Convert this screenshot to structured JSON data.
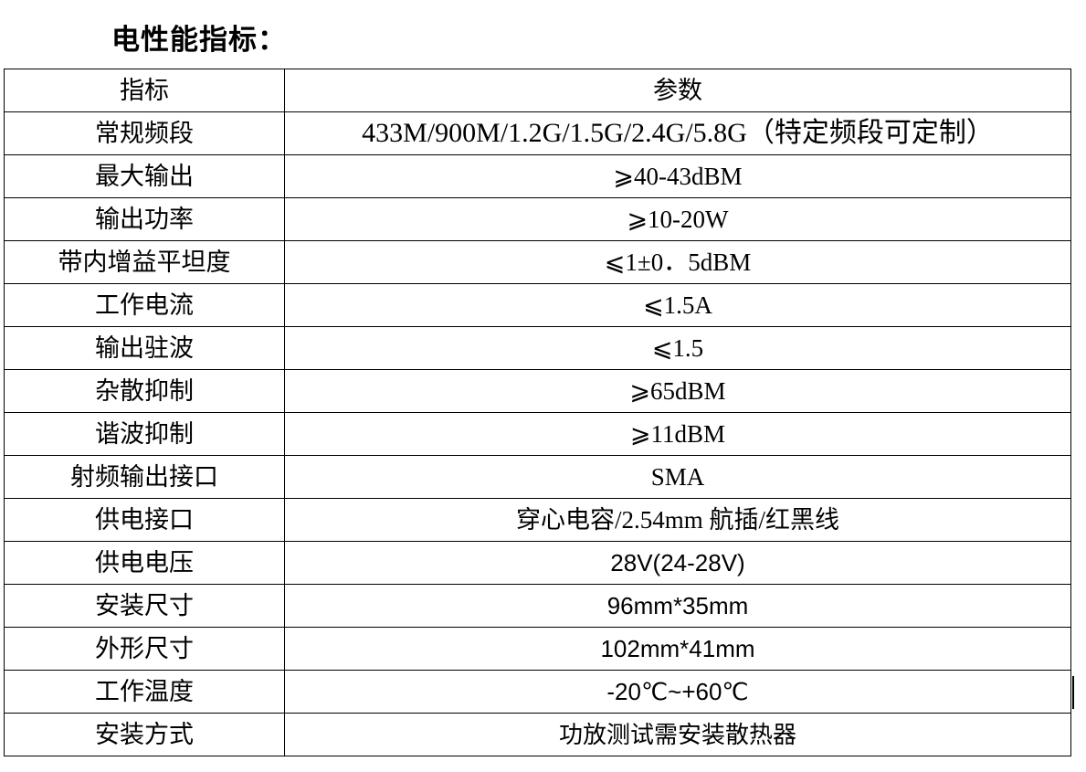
{
  "title": "电性能指标：",
  "table": {
    "header": {
      "key": "指标",
      "value": "参数"
    },
    "rows": [
      {
        "key": "常规频段",
        "value": "433M/900M/1.2G/1.5G/2.4G/5.8G（特定频段可定制）",
        "style": "big"
      },
      {
        "key": "最大输出",
        "value": "⩾40-43dBM",
        "style": ""
      },
      {
        "key": "输出功率",
        "value": "⩾10-20W",
        "style": ""
      },
      {
        "key": "带内增益平坦度",
        "value": "⩽1±0．5dBM",
        "style": ""
      },
      {
        "key": "工作电流",
        "value": "⩽1.5A",
        "style": ""
      },
      {
        "key": "输出驻波",
        "value": "⩽1.5",
        "style": ""
      },
      {
        "key": "杂散抑制",
        "value": "⩾65dBM",
        "style": ""
      },
      {
        "key": "谐波抑制",
        "value": "⩾11dBM",
        "style": ""
      },
      {
        "key": "射频输出接口",
        "value": "SMA",
        "style": ""
      },
      {
        "key": "供电接口",
        "value": "穿心电容/2.54mm 航插/红黑线",
        "style": ""
      },
      {
        "key": "供电电压",
        "value": "28V(24-28V)",
        "style": "sans"
      },
      {
        "key": "安装尺寸",
        "value": "96mm*35mm",
        "style": "sans"
      },
      {
        "key": "外形尺寸",
        "value": "102mm*41mm",
        "style": "sans"
      },
      {
        "key": "工作温度",
        "value": "-20℃~+60℃",
        "style": "sans"
      },
      {
        "key": "安装方式",
        "value": "功放测试需安装散热器",
        "style": "sans"
      }
    ]
  }
}
